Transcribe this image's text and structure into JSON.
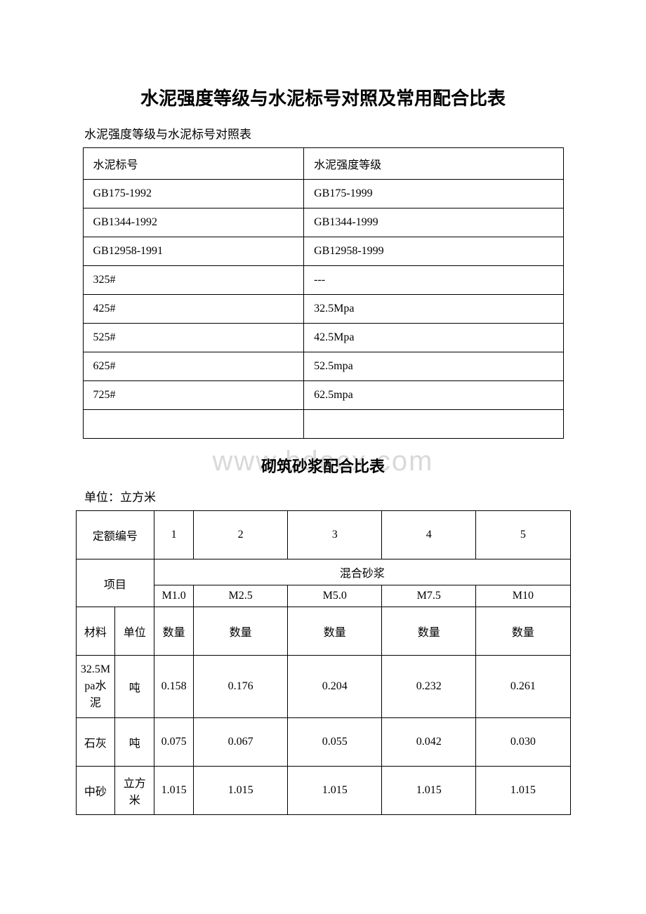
{
  "doc": {
    "main_title": "水泥强度等级与水泥标号对照及常用配合比表",
    "subtitle1": "水泥强度等级与水泥标号对照表",
    "watermark": "www.bdocx.com",
    "section_title2": "砌筑砂浆配合比表",
    "unit_label": "单位：立方米"
  },
  "table1": {
    "rows": [
      [
        "水泥标号",
        "水泥强度等级"
      ],
      [
        "GB175-1992",
        "GB175-1999"
      ],
      [
        "GB1344-1992",
        "GB1344-1999"
      ],
      [
        "GB12958-1991",
        "GB12958-1999"
      ],
      [
        "325#",
        "---"
      ],
      [
        "425#",
        "32.5Mpa"
      ],
      [
        "525#",
        "42.5Mpa"
      ],
      [
        "625#",
        "52.5mpa"
      ],
      [
        "725#",
        "62.5mpa"
      ],
      [
        "",
        ""
      ]
    ]
  },
  "table2": {
    "header_row1_label": "定额编号",
    "header_row1_vals": [
      "1",
      "2",
      "3",
      "4",
      "5"
    ],
    "project_label": "项目",
    "mix_label": "混合砂浆",
    "grades": [
      "M1.0",
      "M2.5",
      "M5.0",
      "M7.5",
      "M10"
    ],
    "mat_header": "材料",
    "unit_header": "单位",
    "qty_header": "数量",
    "qty_labels": [
      "数量",
      "数量",
      "数量",
      "数量"
    ],
    "rows": [
      {
        "name": "32.5Mpa水泥",
        "unit": "吨",
        "vals": [
          "0.158",
          "0.176",
          "0.204",
          "0.232",
          "0.261"
        ]
      },
      {
        "name": "石灰",
        "unit": "吨",
        "vals": [
          "0.075",
          "0.067",
          "0.055",
          "0.042",
          "0.030"
        ]
      },
      {
        "name": "中砂",
        "unit": "立方米",
        "vals": [
          "1.015",
          "1.015",
          "1.015",
          "1.015",
          "1.015"
        ]
      }
    ]
  },
  "style": {
    "page_bg": "#ffffff",
    "text_color": "#000000",
    "border_color": "#000000",
    "watermark_color": "#d9d9d9",
    "title_fontsize": 26,
    "body_fontsize": 16
  }
}
